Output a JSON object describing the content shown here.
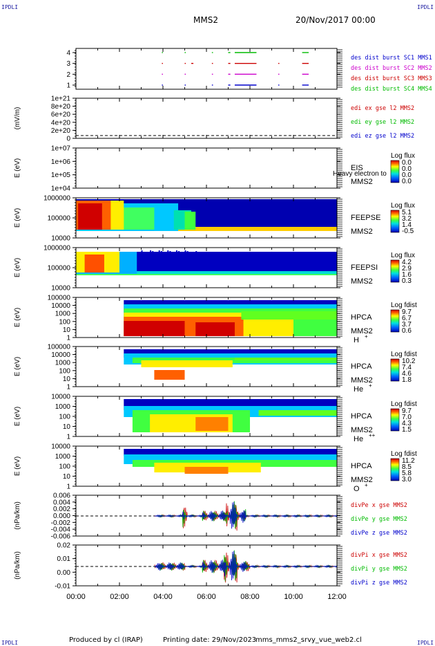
{
  "corner_label": "IPDLI",
  "header": {
    "spacecraft": "MMS2",
    "datetime": "20/Nov/2017 00:00"
  },
  "footer": {
    "produced_by": "Produced by cl (IRAP)",
    "printing_date": "Printing date: 29/Nov/2023",
    "filename": "mms_mms2_srvy_vue_web2.cl"
  },
  "colors": {
    "sc1": "#0000cc",
    "sc2": "#cc00cc",
    "sc3": "#cc0000",
    "sc4": "#00bb00",
    "x": "#cc0000",
    "y": "#00bb00",
    "z": "#0000cc"
  },
  "chart_data": [
    {
      "id": "p1",
      "type": "scatter",
      "yticks": [
        "4",
        "3",
        "2",
        "1"
      ],
      "legend": [
        "des dist burst SC1 MMS1",
        "des dist burst SC2 MMS2",
        "des dist burst SC3 MMS3",
        "des dist burst SC4 MMS4"
      ],
      "series": [
        {
          "y": 1,
          "segments": [
            [
              3.95,
              3.97
            ],
            [
              5.0,
              5.05
            ],
            [
              6.25,
              6.3
            ],
            [
              7.0,
              7.1
            ],
            [
              7.3,
              8.3
            ],
            [
              9.3,
              9.35
            ],
            [
              10.4,
              10.7
            ]
          ]
        },
        {
          "y": 2,
          "segments": [
            [
              3.95,
              3.97
            ],
            [
              5.0,
              5.05
            ],
            [
              6.25,
              6.3
            ],
            [
              7.0,
              7.1
            ],
            [
              7.3,
              8.3
            ],
            [
              9.3,
              9.35
            ],
            [
              10.4,
              10.7
            ]
          ]
        },
        {
          "y": 3,
          "segments": [
            [
              3.95,
              3.97
            ],
            [
              5.0,
              5.05
            ],
            [
              5.3,
              5.4
            ],
            [
              6.25,
              6.3
            ],
            [
              7.0,
              7.1
            ],
            [
              7.3,
              8.3
            ],
            [
              9.3,
              9.35
            ],
            [
              10.4,
              10.7
            ]
          ]
        },
        {
          "y": 4,
          "segments": [
            [
              3.95,
              3.97
            ],
            [
              5.0,
              5.05
            ],
            [
              6.25,
              6.3
            ],
            [
              7.0,
              7.1
            ],
            [
              7.3,
              8.3
            ],
            [
              10.4,
              10.7
            ]
          ]
        }
      ]
    },
    {
      "id": "p2",
      "type": "line",
      "ylabel": "(mV/m)",
      "yticks": [
        "1e+21",
        "8e+20",
        "6e+20",
        "4e+20",
        "2e+20",
        "0"
      ],
      "legend": [
        "edi ex gse l2 MMS2",
        "edi ey gse l2 MMS2",
        "edi ez gse l2 MMS2"
      ]
    },
    {
      "id": "p3",
      "type": "heatmap",
      "ylabel": "E (eV)",
      "yticks": [
        "1e+07",
        "1e+06",
        "1e+05",
        "1e+04"
      ],
      "instrument": "EIS",
      "spacecraft": "MMS2",
      "product": "Heavy electron to",
      "colorbar_title": "Log flux",
      "colorbar_ticks": [
        "0.0",
        "0.0",
        "0.0",
        "0.0"
      ]
    },
    {
      "id": "p4",
      "type": "heatmap",
      "ylabel": "E (eV)",
      "yticks": [
        "1000000",
        "100000",
        "10000"
      ],
      "instrument": "FEEPSE",
      "spacecraft": "MMS2",
      "colorbar_title": "Log flux",
      "colorbar_ticks": [
        "5.1",
        "3.2",
        "1.4",
        "-0.5"
      ]
    },
    {
      "id": "p5",
      "type": "heatmap",
      "ylabel": "E (eV)",
      "yticks": [
        "1000000",
        "100000",
        "10000"
      ],
      "instrument": "FEEPSI",
      "spacecraft": "MMS2",
      "colorbar_title": "Log flux",
      "colorbar_ticks": [
        "4.2",
        "2.9",
        "1.6",
        "0.3"
      ]
    },
    {
      "id": "p6",
      "type": "heatmap",
      "ylabel": "E (eV)",
      "yticks": [
        "100000",
        "10000",
        "1000",
        "100",
        "10",
        "1"
      ],
      "instrument": "HPCA",
      "spacecraft": "MMS2",
      "species": "H",
      "species_charge": "+",
      "colorbar_title": "Log fdist",
      "colorbar_ticks": [
        "9.7",
        "6.7",
        "3.7",
        "0.6"
      ]
    },
    {
      "id": "p7",
      "type": "heatmap",
      "ylabel": "E (eV)",
      "yticks": [
        "100000",
        "10000",
        "1000",
        "100",
        "10",
        "1"
      ],
      "instrument": "HPCA",
      "spacecraft": "MMS2",
      "species": "He",
      "species_charge": "+",
      "colorbar_title": "Log fdist",
      "colorbar_ticks": [
        "10.2",
        "7.4",
        "4.6",
        "1.8"
      ]
    },
    {
      "id": "p8",
      "type": "heatmap",
      "ylabel": "E (eV)",
      "yticks": [
        "10000",
        "1000",
        "100",
        "10",
        "1"
      ],
      "instrument": "HPCA",
      "spacecraft": "MMS2",
      "species": "He",
      "species_charge": "++",
      "colorbar_title": "Log fdist",
      "colorbar_ticks": [
        "9.7",
        "7.0",
        "4.3",
        "1.5"
      ]
    },
    {
      "id": "p9",
      "type": "heatmap",
      "ylabel": "E (eV)",
      "yticks": [
        "10000",
        "1000",
        "100",
        "10",
        "1"
      ],
      "instrument": "HPCA",
      "spacecraft": "MMS2",
      "species": "O",
      "species_charge": "+",
      "colorbar_title": "Log fdist",
      "colorbar_ticks": [
        "11.2",
        "8.5",
        "5.8",
        "3.0"
      ]
    },
    {
      "id": "p10",
      "type": "line",
      "ylabel": "(nPa/km)",
      "yticks": [
        "0.006",
        "0.004",
        "0.002",
        "0.000",
        "-0.002",
        "-0.004",
        "-0.006"
      ],
      "ylim": [
        -0.007,
        0.007
      ],
      "legend": [
        "divPe x gse MMS2",
        "divPe y gse MMS2",
        "divPe z gse MMS2"
      ]
    },
    {
      "id": "p11",
      "type": "line",
      "ylabel": "(nPa/km)",
      "yticks": [
        "0.02",
        "0.01",
        "0.00",
        "-0.01"
      ],
      "ylim": [
        -0.015,
        0.02
      ],
      "legend": [
        "divPi x gse MMS2",
        "divPi y gse MMS2",
        "divPi z gse MMS2"
      ]
    }
  ],
  "xaxis": {
    "ticks": [
      "00:00",
      "02:00",
      "04:00",
      "06:00",
      "08:00",
      "10:00",
      "12:00"
    ]
  }
}
